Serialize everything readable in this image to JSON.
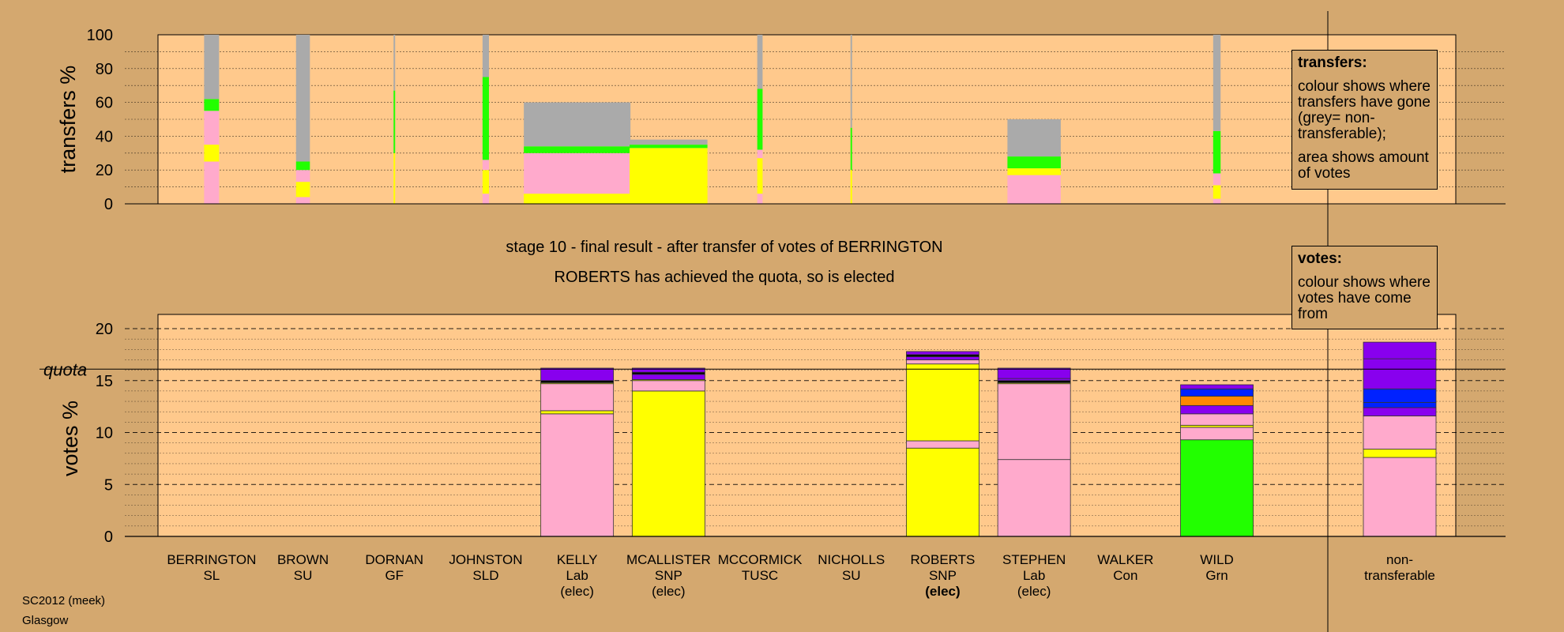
{
  "chart_data": [
    {
      "type": "bar",
      "name": "transfers",
      "ylabel": "transfers %",
      "ylim": [
        0,
        100
      ],
      "yticks": [
        0,
        20,
        40,
        60,
        80,
        100
      ],
      "series_colors": {
        "non-transferable": "#aaaaaa",
        "SNP": "#ffff00",
        "Lab": "#ffaacc",
        "Grn": "#22ff00",
        "Con": "#0022ff",
        "SU": "#8800ee",
        "other": "#000000"
      },
      "bars": [
        {
          "candidate": "BERRINGTON",
          "transfer_amount": 1.4,
          "segments": [
            [
              "Lab",
              0,
              25
            ],
            [
              "SNP",
              25,
              35
            ],
            [
              "Lab",
              35,
              55
            ],
            [
              "Grn",
              55,
              62
            ],
            [
              "non-transferable",
              62,
              100
            ]
          ]
        },
        {
          "candidate": "BROWN",
          "transfer_amount": 1.3,
          "segments": [
            [
              "Lab",
              0,
              4
            ],
            [
              "SNP",
              4,
              13
            ],
            [
              "Lab",
              13,
              20
            ],
            [
              "Grn",
              20,
              25
            ],
            [
              "non-transferable",
              25,
              100
            ]
          ]
        },
        {
          "candidate": "DORNAN",
          "transfer_amount": 0.1,
          "segments": [
            [
              "SNP",
              0,
              30
            ],
            [
              "Grn",
              30,
              67
            ],
            [
              "non-transferable",
              67,
              100
            ]
          ]
        },
        {
          "candidate": "JOHNSTON",
          "transfer_amount": 0.6,
          "segments": [
            [
              "Lab",
              0,
              6
            ],
            [
              "SNP",
              6,
              20
            ],
            [
              "Lab",
              20,
              26
            ],
            [
              "Grn",
              26,
              75
            ],
            [
              "non-transferable",
              75,
              100
            ]
          ]
        },
        {
          "candidate": "KELLY",
          "transfer_amount": 10,
          "segments": [
            [
              "SNP",
              0,
              6
            ],
            [
              "Lab",
              6,
              30
            ],
            [
              "Grn",
              30,
              34
            ],
            [
              "non-transferable",
              34,
              60
            ]
          ]
        },
        {
          "candidate": "MCALLISTER",
          "transfer_amount": 7.3,
          "segments": [
            [
              "SNP",
              0,
              33
            ],
            [
              "Grn",
              33,
              35
            ],
            [
              "non-transferable",
              35,
              38
            ]
          ]
        },
        {
          "candidate": "MCCORMICK",
          "transfer_amount": 0.5,
          "segments": [
            [
              "Lab",
              0,
              6
            ],
            [
              "SNP",
              6,
              27
            ],
            [
              "Lab",
              27,
              32
            ],
            [
              "Grn",
              32,
              68
            ],
            [
              "non-transferable",
              68,
              100
            ]
          ]
        },
        {
          "candidate": "NICHOLLS",
          "transfer_amount": 0.1,
          "segments": [
            [
              "SNP",
              0,
              20
            ],
            [
              "Grn",
              20,
              45
            ],
            [
              "non-transferable",
              45,
              100
            ]
          ]
        },
        {
          "candidate": "STEPHEN",
          "transfer_amount": 5,
          "segments": [
            [
              "Lab",
              0,
              17
            ],
            [
              "SNP",
              17,
              21
            ],
            [
              "Grn",
              21,
              28
            ],
            [
              "non-transferable",
              28,
              50
            ]
          ]
        },
        {
          "candidate": "WILD",
          "transfer_amount": 0.7,
          "segments": [
            [
              "Lab",
              0,
              3
            ],
            [
              "SNP",
              3,
              11
            ],
            [
              "Lab",
              11,
              18
            ],
            [
              "Grn",
              18,
              43
            ],
            [
              "non-transferable",
              43,
              100
            ]
          ]
        }
      ]
    },
    {
      "type": "bar",
      "name": "votes",
      "ylabel": "votes %",
      "ylim": [
        0,
        21.2
      ],
      "yticks": [
        0,
        5,
        10,
        15,
        20
      ],
      "quota": 16.1,
      "quota_label": "quota",
      "categories": [
        {
          "name": "BERRINGTON",
          "party": "SL",
          "status": ""
        },
        {
          "name": "BROWN",
          "party": "SU",
          "status": ""
        },
        {
          "name": "DORNAN",
          "party": "GF",
          "status": ""
        },
        {
          "name": "JOHNSTON",
          "party": "SLD",
          "status": ""
        },
        {
          "name": "KELLY",
          "party": "Lab",
          "status": "(elec)"
        },
        {
          "name": "MCALLISTER",
          "party": "SNP",
          "status": "(elec)"
        },
        {
          "name": "MCCORMICK",
          "party": "TUSC",
          "status": ""
        },
        {
          "name": "NICHOLLS",
          "party": "SU",
          "status": ""
        },
        {
          "name": "ROBERTS",
          "party": "SNP",
          "status": "(elec)",
          "status_bold": true
        },
        {
          "name": "STEPHEN",
          "party": "Lab",
          "status": "(elec)"
        },
        {
          "name": "WALKER",
          "party": "Con",
          "status": ""
        },
        {
          "name": "WILD",
          "party": "Grn",
          "status": ""
        }
      ],
      "nontransferable_label": [
        "non-",
        "transferable"
      ],
      "stacks": [
        {
          "candidate": "KELLY",
          "segments": [
            [
              "#ffaacc",
              0,
              11.8
            ],
            [
              "#ffff00",
              11.8,
              12.1
            ],
            [
              "#ffaacc",
              12.1,
              14.7
            ],
            [
              "#ffff00",
              14.7,
              14.8
            ],
            [
              "#000000",
              14.8,
              15.0
            ],
            [
              "#8800ee",
              15.0,
              16.2
            ]
          ]
        },
        {
          "candidate": "MCALLISTER",
          "segments": [
            [
              "#ffff00",
              0,
              14.0
            ],
            [
              "#ffaacc",
              14.0,
              15.0
            ],
            [
              "#ffff00",
              15.0,
              15.1
            ],
            [
              "#8800ee",
              15.1,
              15.6
            ],
            [
              "#000000",
              15.6,
              15.8
            ],
            [
              "#8800ee",
              15.8,
              16.2
            ]
          ]
        },
        {
          "candidate": "ROBERTS",
          "segments": [
            [
              "#ffff00",
              0,
              8.5
            ],
            [
              "#ffaacc",
              8.5,
              9.2
            ],
            [
              "#ffff00",
              9.2,
              16.6
            ],
            [
              "#ffaacc",
              16.6,
              17.0
            ],
            [
              "#8800ee",
              17.0,
              17.3
            ],
            [
              "#000000",
              17.3,
              17.5
            ],
            [
              "#8800ee",
              17.5,
              17.8
            ]
          ]
        },
        {
          "candidate": "STEPHEN",
          "segments": [
            [
              "#ffaacc",
              0,
              7.4
            ],
            [
              "#ffaacc",
              7.4,
              14.7
            ],
            [
              "#ffff00",
              14.7,
              14.8
            ],
            [
              "#000000",
              14.8,
              15.0
            ],
            [
              "#8800ee",
              15.0,
              15.2
            ],
            [
              "#8800ee",
              15.2,
              16.2
            ]
          ]
        },
        {
          "candidate": "WILD",
          "segments": [
            [
              "#22ff00",
              0,
              9.3
            ],
            [
              "#ffaacc",
              9.3,
              10.5
            ],
            [
              "#ffff00",
              10.5,
              10.7
            ],
            [
              "#ffaacc",
              10.7,
              11.8
            ],
            [
              "#8800ee",
              11.8,
              12.6
            ],
            [
              "#ff8800",
              12.6,
              13.5
            ],
            [
              "#0022ff",
              13.5,
              14.2
            ],
            [
              "#8800ee",
              14.2,
              14.6
            ]
          ]
        },
        {
          "candidate": "non-transferable",
          "segments": [
            [
              "#ffaacc",
              0,
              7.6
            ],
            [
              "#ffff00",
              7.6,
              8.4
            ],
            [
              "#ffaacc",
              8.4,
              11.6
            ],
            [
              "#8800ee",
              11.6,
              12.4
            ],
            [
              "#0022ff",
              12.4,
              12.9
            ],
            [
              "#0022ff",
              12.9,
              14.2
            ],
            [
              "#8800ee",
              14.2,
              17.1
            ],
            [
              "#8800ee",
              17.1,
              18.7
            ]
          ]
        }
      ]
    }
  ],
  "stage_text": "stage 10 - final result - after transfer of votes of BERRINGTON",
  "result_text": "ROBERTS has achieved the quota, so is elected",
  "legend_transfers": {
    "title": "transfers:",
    "line1": "colour shows where transfers have gone (grey= non-transferable);",
    "line2": "area shows amount of votes"
  },
  "legend_votes": {
    "title": "votes:",
    "line1": "colour shows where votes have come from"
  },
  "footer": {
    "line1": "SC2012 (meek)",
    "line2": "Glasgow"
  }
}
